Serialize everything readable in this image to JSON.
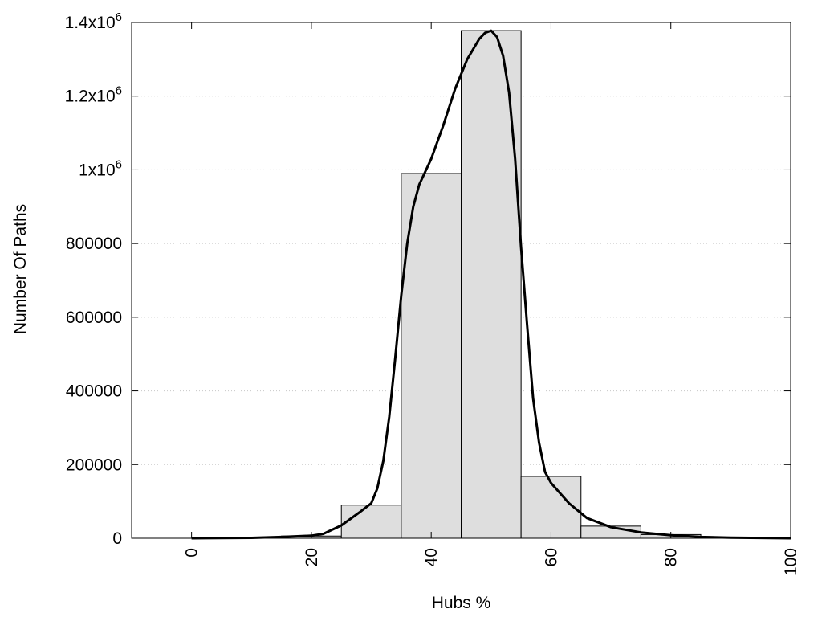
{
  "chart_data": {
    "type": "bar",
    "title": "",
    "xlabel": "Hubs %",
    "ylabel": "Number Of Paths",
    "xlim": [
      -10,
      100
    ],
    "ylim": [
      0,
      1400000
    ],
    "grid": {
      "y": true,
      "x": false
    },
    "colors": {
      "bar_fill": "#dedede",
      "bar_stroke": "#000000",
      "curve": "#000000",
      "grid": "#c8c8c8"
    },
    "x_ticks": [
      {
        "value": 0,
        "label": "0"
      },
      {
        "value": 20,
        "label": "20"
      },
      {
        "value": 40,
        "label": "40"
      },
      {
        "value": 60,
        "label": "60"
      },
      {
        "value": 80,
        "label": "80"
      },
      {
        "value": 100,
        "label": "100"
      }
    ],
    "y_ticks": [
      {
        "value": 0,
        "mantissa": "0",
        "exp": ""
      },
      {
        "value": 200000,
        "mantissa": "200000",
        "exp": ""
      },
      {
        "value": 400000,
        "mantissa": "400000",
        "exp": ""
      },
      {
        "value": 600000,
        "mantissa": "600000",
        "exp": ""
      },
      {
        "value": 800000,
        "mantissa": "800000",
        "exp": ""
      },
      {
        "value": 1000000,
        "mantissa": "1x10",
        "exp": "6"
      },
      {
        "value": 1200000,
        "mantissa": "1.2x10",
        "exp": "6"
      },
      {
        "value": 1400000,
        "mantissa": "1.4x10",
        "exp": "6"
      }
    ],
    "bins": [
      {
        "start": 5,
        "end": 15,
        "value": 2000
      },
      {
        "start": 15,
        "end": 25,
        "value": 6000
      },
      {
        "start": 25,
        "end": 35,
        "value": 90000
      },
      {
        "start": 35,
        "end": 45,
        "value": 990000
      },
      {
        "start": 45,
        "end": 55,
        "value": 1378000
      },
      {
        "start": 55,
        "end": 65,
        "value": 168000
      },
      {
        "start": 65,
        "end": 75,
        "value": 33000
      },
      {
        "start": 75,
        "end": 85,
        "value": 10000
      },
      {
        "start": 85,
        "end": 95,
        "value": 2000
      }
    ],
    "curve": [
      [
        0,
        0
      ],
      [
        10,
        1000
      ],
      [
        15,
        3500
      ],
      [
        20,
        7000
      ],
      [
        22,
        12000
      ],
      [
        25,
        35000
      ],
      [
        28,
        70000
      ],
      [
        30,
        95000
      ],
      [
        31,
        135000
      ],
      [
        32,
        210000
      ],
      [
        33,
        330000
      ],
      [
        34,
        490000
      ],
      [
        35,
        660000
      ],
      [
        36,
        800000
      ],
      [
        37,
        900000
      ],
      [
        38,
        960000
      ],
      [
        40,
        1030000
      ],
      [
        42,
        1120000
      ],
      [
        44,
        1220000
      ],
      [
        46,
        1300000
      ],
      [
        48,
        1355000
      ],
      [
        49,
        1372000
      ],
      [
        50,
        1378000
      ],
      [
        51,
        1360000
      ],
      [
        52,
        1310000
      ],
      [
        53,
        1210000
      ],
      [
        54,
        1030000
      ],
      [
        55,
        790000
      ],
      [
        56,
        580000
      ],
      [
        57,
        380000
      ],
      [
        58,
        260000
      ],
      [
        59,
        180000
      ],
      [
        60,
        150000
      ],
      [
        63,
        95000
      ],
      [
        66,
        55000
      ],
      [
        70,
        30000
      ],
      [
        75,
        16000
      ],
      [
        80,
        8000
      ],
      [
        85,
        3500
      ],
      [
        90,
        1500
      ],
      [
        100,
        0
      ]
    ]
  }
}
